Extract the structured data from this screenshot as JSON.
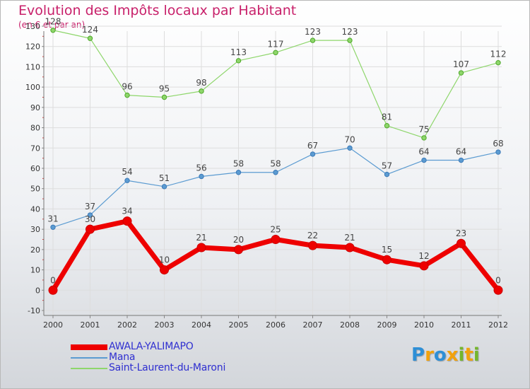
{
  "chart_data": {
    "type": "line",
    "title": "Evolution des Impôts locaux par Habitant",
    "subtitle": "(en € et par an)",
    "x": [
      "2000",
      "2001",
      "2002",
      "2003",
      "2004",
      "2005",
      "2006",
      "2007",
      "2008",
      "2009",
      "2010",
      "2011",
      "2012"
    ],
    "ylim": [
      -10,
      130
    ],
    "yticks": [
      "-10",
      "0",
      "10",
      "20",
      "30",
      "40",
      "50",
      "60",
      "70",
      "80",
      "90",
      "100",
      "110",
      "120",
      "130"
    ],
    "grid": true,
    "legend_position": "bottom-left",
    "series": [
      {
        "name": "AWALA-YALIMAPO",
        "color": "#ee0000",
        "values": [
          0,
          30,
          34,
          10,
          21,
          20,
          25,
          22,
          21,
          15,
          12,
          23,
          0
        ],
        "labels": [
          "0",
          "30",
          "34",
          "10",
          "21",
          "20",
          "25",
          "22",
          "21",
          "15",
          "12",
          "23",
          "0"
        ]
      },
      {
        "name": "Mana",
        "color": "#5b9bd1",
        "values": [
          31,
          37,
          54,
          51,
          56,
          58,
          58,
          67,
          70,
          57,
          64,
          64,
          68
        ],
        "labels": [
          "31",
          "37",
          "54",
          "51",
          "56",
          "58",
          "58",
          "67",
          "70",
          "57",
          "64",
          "64",
          "68"
        ]
      },
      {
        "name": "Saint-Laurent-du-Maroni",
        "color": "#8ed66b",
        "values": [
          128,
          124,
          96,
          95,
          98,
          113,
          117,
          123,
          123,
          81,
          75,
          107,
          112
        ],
        "labels": [
          "128",
          "124",
          "96",
          "95",
          "98",
          "113",
          "117",
          "123",
          "123",
          "81",
          "75",
          "107",
          "112"
        ]
      }
    ]
  },
  "logo": {
    "letters": [
      "P",
      "r",
      "o",
      "x",
      "i",
      "t",
      "i"
    ],
    "colors": [
      "#2e8fd6",
      "#f2a20c",
      "#2e8fd6",
      "#f2a20c",
      "#74b62c",
      "#f2a20c",
      "#74b62c"
    ]
  }
}
